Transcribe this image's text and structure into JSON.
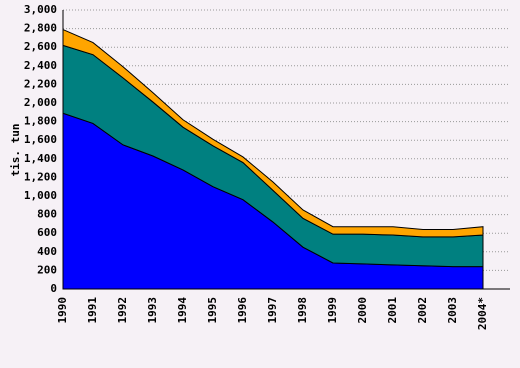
{
  "chart_data": {
    "type": "stacked-area",
    "y_label": "tis. tun",
    "categories": [
      "1990",
      "1991",
      "1992",
      "1993",
      "1994",
      "1995",
      "1996",
      "1997",
      "1998",
      "1999",
      "2000",
      "2001",
      "2002",
      "2003",
      "2004*"
    ],
    "series": [
      {
        "color": "#0000ff",
        "values": [
          1890,
          1780,
          1550,
          1430,
          1280,
          1100,
          960,
          720,
          450,
          280,
          270,
          260,
          250,
          240,
          240
        ]
      },
      {
        "color": "#008080",
        "values": [
          730,
          740,
          720,
          580,
          460,
          440,
          400,
          340,
          310,
          310,
          320,
          320,
          310,
          320,
          340
        ]
      },
      {
        "color": "#ffa500",
        "values": [
          170,
          130,
          120,
          100,
          80,
          70,
          60,
          90,
          90,
          80,
          80,
          90,
          80,
          80,
          90
        ]
      }
    ],
    "ylim": [
      0,
      3000
    ],
    "yticks": [
      0,
      200,
      400,
      600,
      800,
      {
        "value": 1000,
        "label": "1,000"
      },
      {
        "value": 1200,
        "label": "1,200"
      },
      {
        "value": 1400,
        "label": "1,400"
      },
      {
        "value": 1600,
        "label": "1,600"
      },
      {
        "value": 1800,
        "label": "1,800"
      },
      {
        "value": 2000,
        "label": "2,000"
      },
      {
        "value": 2200,
        "label": "2,200"
      },
      {
        "value": 2400,
        "label": "2,400"
      },
      {
        "value": 2600,
        "label": "2,600"
      },
      {
        "value": 2800,
        "label": "2,800"
      },
      {
        "value": 3000,
        "label": "3,000"
      }
    ],
    "grid": true
  }
}
